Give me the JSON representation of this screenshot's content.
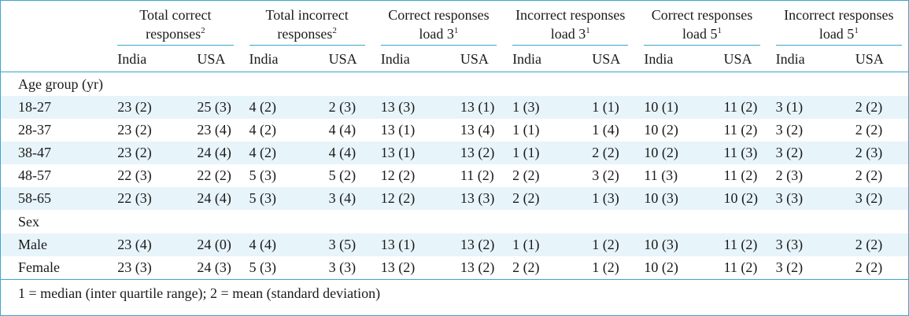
{
  "columns": {
    "groups": [
      {
        "line1": "Total correct",
        "line2": "responses",
        "sup": "2"
      },
      {
        "line1": "Total incorrect",
        "line2": "responses",
        "sup": "2"
      },
      {
        "line1": "Correct responses",
        "line2": "load 3",
        "sup": "1"
      },
      {
        "line1": "Incorrect responses",
        "line2": "load 3",
        "sup": "1"
      },
      {
        "line1": "Correct responses",
        "line2": "load 5",
        "sup": "1"
      },
      {
        "line1": "Incorrect responses",
        "line2": "load 5",
        "sup": "1"
      }
    ],
    "sub": [
      "India",
      "USA",
      "India",
      "USA",
      "India",
      "USA",
      "India",
      "USA",
      "India",
      "USA",
      "India",
      "USA"
    ]
  },
  "sections": [
    {
      "title": "Age group (yr)",
      "rows": [
        {
          "label": "18-27",
          "values": [
            "23 (2)",
            "25 (3)",
            "4 (2)",
            "2 (3)",
            "13 (3)",
            "13 (1)",
            "1 (3)",
            "1 (1)",
            "10 (1)",
            "11 (2)",
            "3 (1)",
            "2 (2)"
          ]
        },
        {
          "label": "28-37",
          "values": [
            "23 (2)",
            "23 (4)",
            "4 (2)",
            "4 (4)",
            "13 (1)",
            "13 (4)",
            "1 (1)",
            "1 (4)",
            "10 (2)",
            "11 (2)",
            "3 (2)",
            "2 (2)"
          ]
        },
        {
          "label": "38-47",
          "values": [
            "23 (2)",
            "24 (4)",
            "4 (2)",
            "4 (4)",
            "13 (1)",
            "13 (2)",
            "1 (1)",
            "2 (2)",
            "10 (2)",
            "11 (3)",
            "3 (2)",
            "2 (3)"
          ]
        },
        {
          "label": "48-57",
          "values": [
            "22 (3)",
            "22 (2)",
            "5 (3)",
            "5 (2)",
            "12 (2)",
            "11 (2)",
            "2 (2)",
            "3 (2)",
            "11 (3)",
            "11 (2)",
            "2 (3)",
            "2 (2)"
          ]
        },
        {
          "label": "58-65",
          "values": [
            "22 (3)",
            "24 (4)",
            "5 (3)",
            "3 (4)",
            "12 (2)",
            "13 (3)",
            "2 (2)",
            "1 (3)",
            "10 (3)",
            "10 (2)",
            "3 (3)",
            "3 (2)"
          ]
        }
      ]
    },
    {
      "title": "Sex",
      "rows": [
        {
          "label": "Male",
          "values": [
            "23 (4)",
            "24 (0)",
            "4 (4)",
            "3 (5)",
            "13 (1)",
            "13 (2)",
            "1 (1)",
            "1 (2)",
            "10 (3)",
            "11 (2)",
            "3 (3)",
            "2 (2)"
          ]
        },
        {
          "label": "Female",
          "values": [
            "23 (3)",
            "24 (3)",
            "5 (3)",
            "3 (3)",
            "13 (2)",
            "13 (2)",
            "2 (2)",
            "1 (2)",
            "10 (2)",
            "11 (2)",
            "3 (2)",
            "2 (2)"
          ]
        }
      ]
    }
  ],
  "footnote": "1 = median (inter quartile range); 2 = mean (standard deviation)",
  "colors": {
    "border": "#3aa7c9",
    "row_shade": "#e7f4fa"
  }
}
